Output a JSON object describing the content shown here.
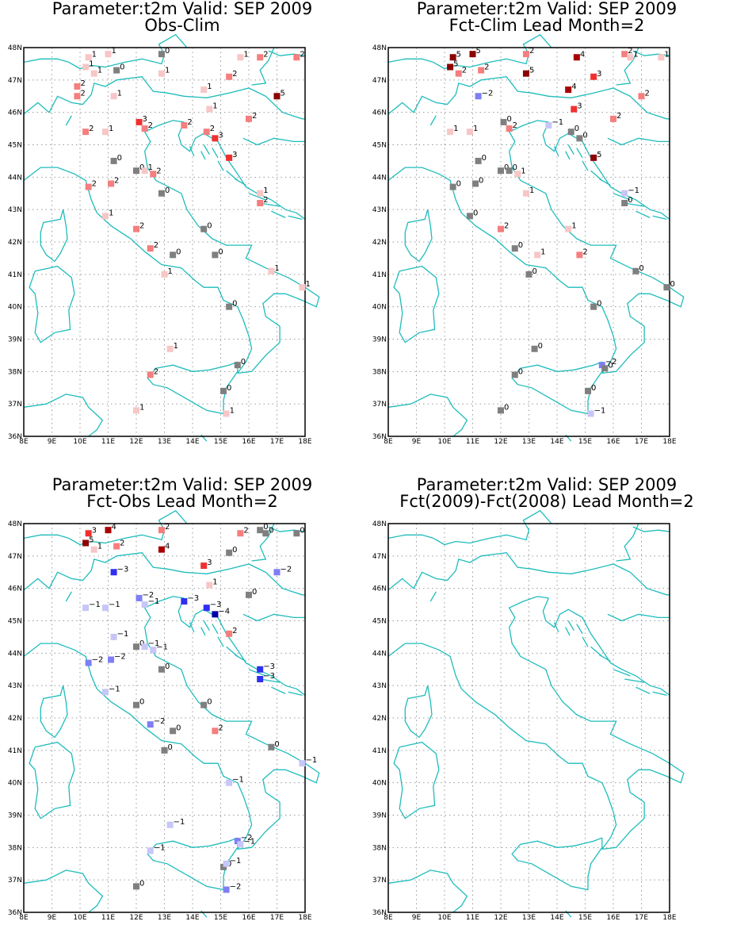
{
  "colors": {
    "coastline": "#1fbcbc",
    "grid": "#9a9a9a",
    "zero_marker": "#7f7f7f",
    "pos_1": "#f7c6c6",
    "pos_2": "#f57e7e",
    "pos_3": "#f03030",
    "pos_4": "#a80000",
    "pos_5": "#8b0000",
    "neg_1": "#c6c6f7",
    "neg_2": "#7e7ef5",
    "neg_3": "#3030f0",
    "neg_4": "#0000a8"
  },
  "axes": {
    "lon_ticks": [
      "8E",
      "9E",
      "10E",
      "11E",
      "12E",
      "13E",
      "14E",
      "15E",
      "16E",
      "17E",
      "18E"
    ],
    "lat_ticks": [
      "36N",
      "37N",
      "38N",
      "39N",
      "40N",
      "41N",
      "42N",
      "43N",
      "44N",
      "45N",
      "46N",
      "47N",
      "48N"
    ],
    "lon_range": [
      8,
      18
    ],
    "lat_range": [
      36,
      48
    ],
    "grid": "dotted"
  },
  "panels": [
    {
      "title_line1": "Parameter:t2m Valid: SEP 2009",
      "title_line2": "Obs-Clim",
      "stations": [
        {
          "lon": 10.3,
          "lat": 47.7,
          "v": 1
        },
        {
          "lon": 11.0,
          "lat": 47.8,
          "v": 1
        },
        {
          "lon": 12.9,
          "lat": 47.8,
          "v": 0
        },
        {
          "lon": 15.7,
          "lat": 47.7,
          "v": 1
        },
        {
          "lon": 16.4,
          "lat": 47.7,
          "v": 2
        },
        {
          "lon": 17.7,
          "lat": 47.7,
          "v": 2
        },
        {
          "lon": 10.2,
          "lat": 47.4,
          "v": 1
        },
        {
          "lon": 11.3,
          "lat": 47.3,
          "v": 0
        },
        {
          "lon": 10.5,
          "lat": 47.2,
          "v": 1
        },
        {
          "lon": 12.9,
          "lat": 47.2,
          "v": 1
        },
        {
          "lon": 15.3,
          "lat": 47.1,
          "v": 2
        },
        {
          "lon": 9.9,
          "lat": 46.8,
          "v": 2
        },
        {
          "lon": 9.9,
          "lat": 46.5,
          "v": 2
        },
        {
          "lon": 14.4,
          "lat": 46.7,
          "v": 1
        },
        {
          "lon": 11.2,
          "lat": 46.5,
          "v": 1
        },
        {
          "lon": 17.0,
          "lat": 46.5,
          "v": 5
        },
        {
          "lon": 14.6,
          "lat": 46.1,
          "v": 1
        },
        {
          "lon": 16.0,
          "lat": 45.8,
          "v": 2
        },
        {
          "lon": 12.1,
          "lat": 45.7,
          "v": 3
        },
        {
          "lon": 12.3,
          "lat": 45.5,
          "v": 2
        },
        {
          "lon": 13.7,
          "lat": 45.6,
          "v": 2
        },
        {
          "lon": 10.2,
          "lat": 45.4,
          "v": 2
        },
        {
          "lon": 10.9,
          "lat": 45.4,
          "v": 1
        },
        {
          "lon": 14.5,
          "lat": 45.4,
          "v": 2
        },
        {
          "lon": 14.8,
          "lat": 45.2,
          "v": 3
        },
        {
          "lon": 11.2,
          "lat": 44.5,
          "v": 0
        },
        {
          "lon": 15.3,
          "lat": 44.6,
          "v": 3
        },
        {
          "lon": 12.0,
          "lat": 44.2,
          "v": 0
        },
        {
          "lon": 12.3,
          "lat": 44.2,
          "v": 1
        },
        {
          "lon": 12.6,
          "lat": 44.1,
          "v": 2
        },
        {
          "lon": 11.1,
          "lat": 43.8,
          "v": 2
        },
        {
          "lon": 10.3,
          "lat": 43.7,
          "v": 2
        },
        {
          "lon": 12.9,
          "lat": 43.5,
          "v": 0
        },
        {
          "lon": 16.4,
          "lat": 43.5,
          "v": 1
        },
        {
          "lon": 16.4,
          "lat": 43.2,
          "v": 2
        },
        {
          "lon": 10.9,
          "lat": 42.8,
          "v": 1
        },
        {
          "lon": 12.0,
          "lat": 42.4,
          "v": 2
        },
        {
          "lon": 14.4,
          "lat": 42.4,
          "v": 0
        },
        {
          "lon": 12.5,
          "lat": 41.8,
          "v": 2
        },
        {
          "lon": 13.3,
          "lat": 41.6,
          "v": 0
        },
        {
          "lon": 14.8,
          "lat": 41.6,
          "v": 0
        },
        {
          "lon": 16.8,
          "lat": 41.1,
          "v": 1
        },
        {
          "lon": 13.0,
          "lat": 41.0,
          "v": 1
        },
        {
          "lon": 17.9,
          "lat": 40.6,
          "v": 1
        },
        {
          "lon": 15.3,
          "lat": 40.0,
          "v": 0
        },
        {
          "lon": 13.2,
          "lat": 38.7,
          "v": 1
        },
        {
          "lon": 15.6,
          "lat": 38.2,
          "v": 0
        },
        {
          "lon": 12.5,
          "lat": 37.9,
          "v": 2
        },
        {
          "lon": 15.1,
          "lat": 37.4,
          "v": 0
        },
        {
          "lon": 12.0,
          "lat": 36.8,
          "v": 1
        },
        {
          "lon": 15.2,
          "lat": 36.7,
          "v": 1
        }
      ]
    },
    {
      "title_line1": "Parameter:t2m Valid: SEP 2009",
      "title_line2": "Fct-Clim Lead Month=2",
      "stations": [
        {
          "lon": 10.3,
          "lat": 47.7,
          "v": 5
        },
        {
          "lon": 11.0,
          "lat": 47.8,
          "v": 5
        },
        {
          "lon": 12.9,
          "lat": 47.8,
          "v": 2
        },
        {
          "lon": 16.4,
          "lat": 47.8,
          "v": 2
        },
        {
          "lon": 16.6,
          "lat": 47.7,
          "v": 1
        },
        {
          "lon": 17.7,
          "lat": 47.7,
          "v": 1
        },
        {
          "lon": 14.7,
          "lat": 47.7,
          "v": 4
        },
        {
          "lon": 10.2,
          "lat": 47.4,
          "v": 5
        },
        {
          "lon": 11.3,
          "lat": 47.3,
          "v": 2
        },
        {
          "lon": 10.5,
          "lat": 47.2,
          "v": 2
        },
        {
          "lon": 12.9,
          "lat": 47.2,
          "v": 5
        },
        {
          "lon": 15.3,
          "lat": 47.1,
          "v": 3
        },
        {
          "lon": 14.4,
          "lat": 46.7,
          "v": 4
        },
        {
          "lon": 11.2,
          "lat": 46.5,
          "v": -2
        },
        {
          "lon": 17.0,
          "lat": 46.5,
          "v": 2
        },
        {
          "lon": 14.6,
          "lat": 46.1,
          "v": 3
        },
        {
          "lon": 16.0,
          "lat": 45.8,
          "v": 2
        },
        {
          "lon": 12.1,
          "lat": 45.7,
          "v": 0
        },
        {
          "lon": 12.3,
          "lat": 45.5,
          "v": 2
        },
        {
          "lon": 13.7,
          "lat": 45.6,
          "v": -1
        },
        {
          "lon": 10.2,
          "lat": 45.4,
          "v": 1
        },
        {
          "lon": 10.9,
          "lat": 45.4,
          "v": 1
        },
        {
          "lon": 14.5,
          "lat": 45.4,
          "v": 0
        },
        {
          "lon": 14.8,
          "lat": 45.2,
          "v": 0
        },
        {
          "lon": 11.2,
          "lat": 44.5,
          "v": 0
        },
        {
          "lon": 15.3,
          "lat": 44.6,
          "v": 5
        },
        {
          "lon": 12.0,
          "lat": 44.2,
          "v": 0
        },
        {
          "lon": 12.3,
          "lat": 44.2,
          "v": 0
        },
        {
          "lon": 12.6,
          "lat": 44.1,
          "v": 1
        },
        {
          "lon": 11.1,
          "lat": 43.8,
          "v": 0
        },
        {
          "lon": 10.3,
          "lat": 43.7,
          "v": 0
        },
        {
          "lon": 12.9,
          "lat": 43.5,
          "v": 1
        },
        {
          "lon": 16.4,
          "lat": 43.5,
          "v": -1
        },
        {
          "lon": 16.4,
          "lat": 43.2,
          "v": 0
        },
        {
          "lon": 10.9,
          "lat": 42.8,
          "v": 0
        },
        {
          "lon": 12.0,
          "lat": 42.4,
          "v": 2
        },
        {
          "lon": 14.4,
          "lat": 42.4,
          "v": 1
        },
        {
          "lon": 12.5,
          "lat": 41.8,
          "v": 0
        },
        {
          "lon": 13.3,
          "lat": 41.6,
          "v": 1
        },
        {
          "lon": 14.8,
          "lat": 41.6,
          "v": 2
        },
        {
          "lon": 16.8,
          "lat": 41.1,
          "v": 0
        },
        {
          "lon": 13.0,
          "lat": 41.0,
          "v": 0
        },
        {
          "lon": 17.9,
          "lat": 40.6,
          "v": 0
        },
        {
          "lon": 15.3,
          "lat": 40.0,
          "v": 0
        },
        {
          "lon": 13.2,
          "lat": 38.7,
          "v": 0
        },
        {
          "lon": 15.6,
          "lat": 38.2,
          "v": -2
        },
        {
          "lon": 15.7,
          "lat": 38.1,
          "v": 0
        },
        {
          "lon": 12.5,
          "lat": 37.9,
          "v": 0
        },
        {
          "lon": 15.1,
          "lat": 37.4,
          "v": 0
        },
        {
          "lon": 12.0,
          "lat": 36.8,
          "v": 0
        },
        {
          "lon": 15.2,
          "lat": 36.7,
          "v": -1
        }
      ]
    },
    {
      "title_line1": "Parameter:t2m Valid: SEP 2009",
      "title_line2": "Fct-Obs Lead Month=2",
      "stations": [
        {
          "lon": 10.3,
          "lat": 47.7,
          "v": 3
        },
        {
          "lon": 11.0,
          "lat": 47.8,
          "v": 4
        },
        {
          "lon": 12.9,
          "lat": 47.8,
          "v": 2
        },
        {
          "lon": 15.7,
          "lat": 47.7,
          "v": 2
        },
        {
          "lon": 16.4,
          "lat": 47.8,
          "v": 0
        },
        {
          "lon": 16.6,
          "lat": 47.7,
          "v": 0
        },
        {
          "lon": 17.7,
          "lat": 47.7,
          "v": 0
        },
        {
          "lon": 10.2,
          "lat": 47.4,
          "v": 5
        },
        {
          "lon": 11.3,
          "lat": 47.3,
          "v": 2
        },
        {
          "lon": 10.5,
          "lat": 47.2,
          "v": 1
        },
        {
          "lon": 12.9,
          "lat": 47.2,
          "v": 4
        },
        {
          "lon": 15.3,
          "lat": 47.1,
          "v": 0
        },
        {
          "lon": 14.4,
          "lat": 46.7,
          "v": 3
        },
        {
          "lon": 11.2,
          "lat": 46.5,
          "v": -3
        },
        {
          "lon": 17.0,
          "lat": 46.5,
          "v": -2
        },
        {
          "lon": 14.6,
          "lat": 46.1,
          "v": 1
        },
        {
          "lon": 16.0,
          "lat": 45.8,
          "v": 0
        },
        {
          "lon": 12.1,
          "lat": 45.7,
          "v": -2
        },
        {
          "lon": 12.3,
          "lat": 45.5,
          "v": -1
        },
        {
          "lon": 13.7,
          "lat": 45.6,
          "v": -3
        },
        {
          "lon": 10.2,
          "lat": 45.4,
          "v": -1
        },
        {
          "lon": 10.9,
          "lat": 45.4,
          "v": -1
        },
        {
          "lon": 14.5,
          "lat": 45.4,
          "v": -3
        },
        {
          "lon": 14.8,
          "lat": 45.2,
          "v": -4
        },
        {
          "lon": 11.2,
          "lat": 44.5,
          "v": -1
        },
        {
          "lon": 15.3,
          "lat": 44.6,
          "v": 2
        },
        {
          "lon": 12.0,
          "lat": 44.2,
          "v": 0
        },
        {
          "lon": 12.3,
          "lat": 44.2,
          "v": -1
        },
        {
          "lon": 12.6,
          "lat": 44.1,
          "v": -1
        },
        {
          "lon": 11.1,
          "lat": 43.8,
          "v": -2
        },
        {
          "lon": 10.3,
          "lat": 43.7,
          "v": -2
        },
        {
          "lon": 12.9,
          "lat": 43.5,
          "v": 0
        },
        {
          "lon": 16.4,
          "lat": 43.5,
          "v": -3
        },
        {
          "lon": 16.4,
          "lat": 43.2,
          "v": -3
        },
        {
          "lon": 10.9,
          "lat": 42.8,
          "v": -1
        },
        {
          "lon": 12.0,
          "lat": 42.4,
          "v": 0
        },
        {
          "lon": 14.4,
          "lat": 42.4,
          "v": 0
        },
        {
          "lon": 12.5,
          "lat": 41.8,
          "v": -2
        },
        {
          "lon": 13.3,
          "lat": 41.6,
          "v": 0
        },
        {
          "lon": 14.8,
          "lat": 41.6,
          "v": 2
        },
        {
          "lon": 16.8,
          "lat": 41.1,
          "v": 0
        },
        {
          "lon": 13.0,
          "lat": 41.0,
          "v": 0
        },
        {
          "lon": 17.9,
          "lat": 40.6,
          "v": -1
        },
        {
          "lon": 15.3,
          "lat": 40.0,
          "v": -1
        },
        {
          "lon": 13.2,
          "lat": 38.7,
          "v": -1
        },
        {
          "lon": 15.6,
          "lat": 38.2,
          "v": -2
        },
        {
          "lon": 15.7,
          "lat": 38.1,
          "v": -1
        },
        {
          "lon": 12.5,
          "lat": 37.9,
          "v": -1
        },
        {
          "lon": 15.1,
          "lat": 37.4,
          "v": 0
        },
        {
          "lon": 15.2,
          "lat": 37.5,
          "v": -1
        },
        {
          "lon": 12.0,
          "lat": 36.8,
          "v": 0
        },
        {
          "lon": 15.2,
          "lat": 36.7,
          "v": -2
        }
      ]
    },
    {
      "title_line1": "Parameter:t2m Valid: SEP 2009",
      "title_line2": "Fct(2009)-Fct(2008) Lead Month=2",
      "stations": []
    }
  ]
}
